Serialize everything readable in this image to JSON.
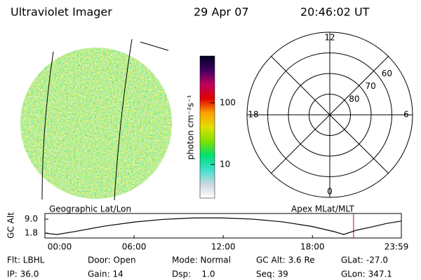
{
  "header": {
    "title": "Ultraviolet Imager",
    "date": "29 Apr 07",
    "time": "20:46:02 UT"
  },
  "colorbar": {
    "label": "photon cm⁻²s⁻¹",
    "log": true,
    "lim": [
      2.85,
      575
    ],
    "ticks": [
      10,
      100
    ],
    "colors": [
      "#ffffff",
      "#c8d8e0",
      "#40e0d0",
      "#00e070",
      "#80e000",
      "#e0e000",
      "#ffa000",
      "#e00000",
      "#c00060",
      "#400060",
      "#000020"
    ]
  },
  "chart_data": [
    {
      "type": "polar",
      "rlim": [
        90,
        50
      ],
      "rticks": [
        80,
        70,
        60
      ],
      "mlt_ticks": [
        12,
        6,
        0,
        18
      ]
    },
    {
      "type": "line",
      "left_label": "Geographic Lat/Lon",
      "right_label": "Apex MLat/MLT",
      "ylabel": "GC Alt",
      "x": [
        0,
        0.8,
        2,
        4,
        6,
        8,
        10,
        12,
        14,
        16,
        18,
        19.5,
        20.1,
        21,
        22,
        23,
        23.98
      ],
      "values": [
        1.8,
        1.1,
        2.6,
        5.4,
        7.5,
        8.9,
        9.6,
        9.6,
        9.0,
        7.6,
        5.2,
        2.5,
        1.1,
        3.4,
        5.0,
        6.8,
        8.0
      ],
      "color": "#000000",
      "xlim": [
        0,
        23.983
      ],
      "xticks": [
        {
          "value": 0,
          "label": "00:00"
        },
        {
          "value": 6,
          "label": "06:00"
        },
        {
          "value": 12,
          "label": "12:00"
        },
        {
          "value": 18,
          "label": "18:00"
        },
        {
          "value": 23.983,
          "label": "23:59"
        }
      ],
      "ylim": [
        -0.7,
        11.9
      ],
      "yticks": [
        {
          "value": 9,
          "label": "9.0"
        },
        1.8
      ],
      "marker_x": 20.767,
      "marker_color": "#e00000"
    }
  ],
  "footer": {
    "rows": [
      [
        "Flt: LBHL",
        "Door: Open",
        "Mode: Normal",
        "GC Alt: 3.6 Re",
        "GLat: -27.0"
      ],
      [
        "IP: 36.0",
        "Gain: 14",
        "Dsp:    1.0",
        "Seq: 39",
        "GLon: 347.1"
      ]
    ]
  }
}
